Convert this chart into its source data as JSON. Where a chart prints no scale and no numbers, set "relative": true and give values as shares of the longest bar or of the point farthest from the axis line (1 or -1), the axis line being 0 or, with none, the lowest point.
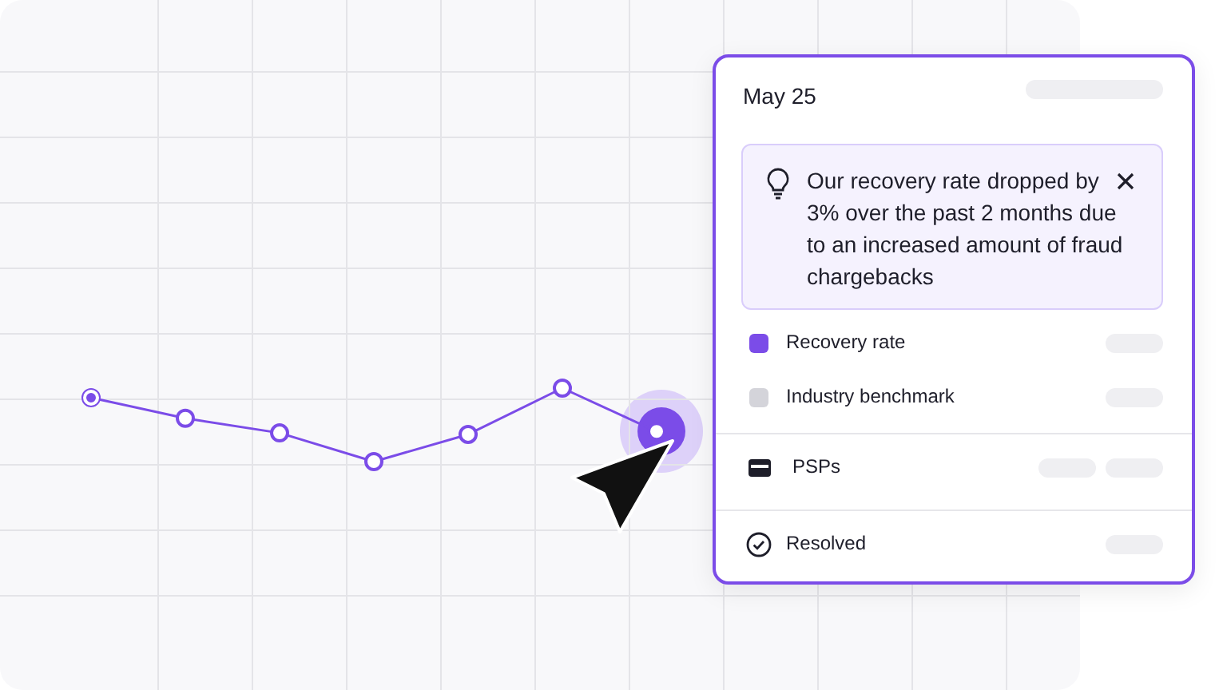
{
  "chart_data": [
    {
      "type": "line",
      "relative": true,
      "categories": [
        null,
        null,
        null,
        null,
        null,
        null,
        null
      ],
      "grid": true,
      "marker": "circle",
      "series": [
        {
          "color": "#7b4ce8",
          "values": [
            0.87,
            0.59,
            0.39,
            0,
            0.37,
            1,
            0.41
          ]
        }
      ]
    },
    {
      "type": "other",
      "title": "May 25",
      "annotations": [
        "Our recovery rate dropped by 3% over the past 2 months due to an increased amount of fraud chargebacks",
        "Recovery rate",
        "Industry benchmark",
        "PSPs",
        "Resolved"
      ]
    }
  ]
}
